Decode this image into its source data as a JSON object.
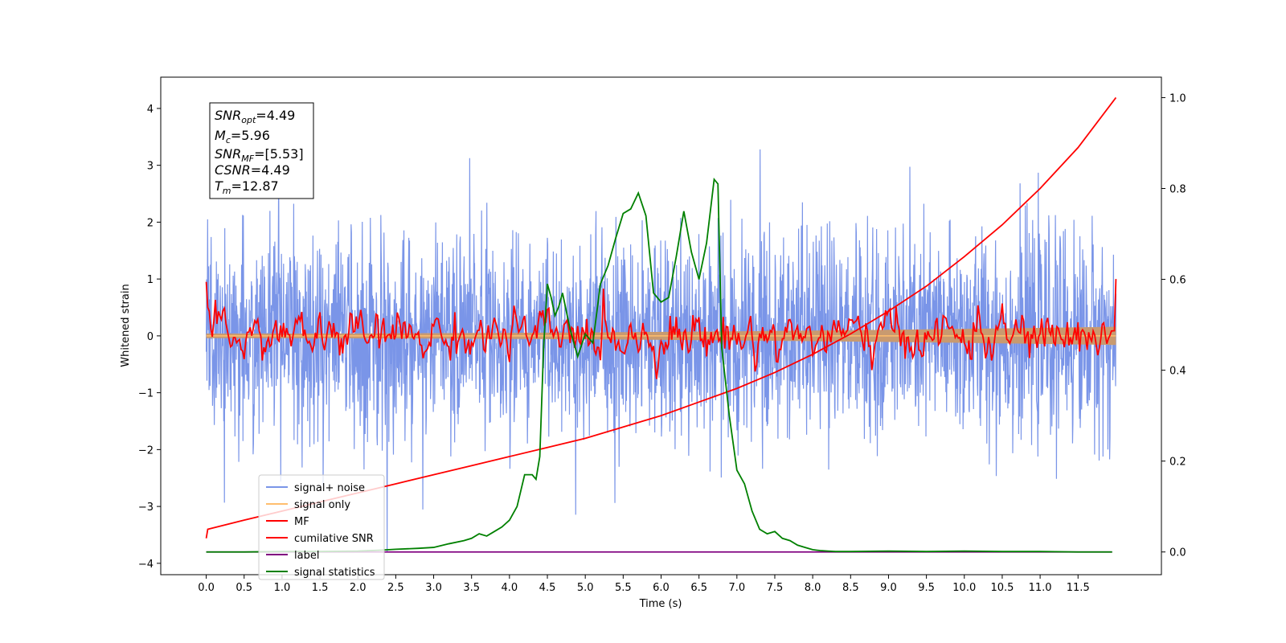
{
  "chart_data": {
    "type": "line",
    "xlabel": "Time (s)",
    "ylabel": "Whitened strain",
    "xlim": [
      -0.6,
      12.6
    ],
    "ylim": [
      -4.2,
      4.55
    ],
    "y2lim": [
      -0.05,
      1.045
    ],
    "xticks": [
      "0.0",
      "0.5",
      "1.0",
      "1.5",
      "2.0",
      "2.5",
      "3.0",
      "3.5",
      "4.0",
      "4.5",
      "5.0",
      "5.5",
      "6.0",
      "6.5",
      "7.0",
      "7.5",
      "8.0",
      "8.5",
      "9.0",
      "9.5",
      "10.0",
      "10.5",
      "11.0",
      "11.5"
    ],
    "yticks": [
      "−4",
      "−3",
      "−2",
      "−1",
      "0",
      "1",
      "2",
      "3",
      "4"
    ],
    "y2ticks": [
      "0.0",
      "0.2",
      "0.4",
      "0.6",
      "0.8",
      "1.0"
    ],
    "grid": false,
    "legend_position": "lower-left",
    "colors": {
      "signal_noise": "#7a95e8",
      "signal_only": "#ffbe6e",
      "mf": "#ff0000",
      "cumulative_snr": "#ff0000",
      "label": "#800080",
      "signal_statistics": "#008000",
      "signal_fill": "#c89a70"
    },
    "info_box": {
      "snr_opt": "SNR",
      "snr_opt_sub": "opt",
      "snr_opt_val": "=4.49",
      "mc": "M",
      "mc_sub": "c",
      "mc_val": "=5.96",
      "snr_mf": "SNR",
      "snr_mf_sub": "MF",
      "snr_mf_val": "=[5.53]",
      "csnr": "CSNR",
      "csnr_val": "=4.49",
      "tm": "T",
      "tm_sub": "m",
      "tm_val": "=12.87"
    },
    "series": [
      {
        "name": "signal+ noise",
        "axis": "left",
        "style": "noise",
        "x_range": [
          0,
          12.0
        ],
        "amplitude_std": 0.9
      },
      {
        "name": "signal only",
        "axis": "left",
        "style": "line",
        "x": [
          0,
          12.0
        ],
        "y": [
          0,
          0
        ]
      },
      {
        "name": "MF",
        "axis": "left",
        "style": "mf",
        "x_range": [
          0,
          12.0
        ],
        "start": 0.95,
        "end": 1.0,
        "std": 0.18
      },
      {
        "name": "cumilative SNR",
        "axis": "right",
        "style": "line",
        "x": [
          0.0,
          0.02,
          0.5,
          1.0,
          1.5,
          2.0,
          2.5,
          3.0,
          3.5,
          4.0,
          4.5,
          5.0,
          5.5,
          6.0,
          6.5,
          7.0,
          7.5,
          8.0,
          8.5,
          9.0,
          9.5,
          10.0,
          10.5,
          11.0,
          11.5,
          12.0
        ],
        "y": [
          0.03,
          0.05,
          0.07,
          0.09,
          0.11,
          0.13,
          0.15,
          0.17,
          0.19,
          0.21,
          0.23,
          0.25,
          0.275,
          0.3,
          0.33,
          0.36,
          0.395,
          0.435,
          0.48,
          0.53,
          0.585,
          0.65,
          0.72,
          0.8,
          0.89,
          1.0
        ]
      },
      {
        "name": "label",
        "axis": "right",
        "style": "line",
        "x": [
          0,
          11.95
        ],
        "y": [
          0.0,
          0.0
        ]
      },
      {
        "name": "signal statistics",
        "axis": "right",
        "style": "line",
        "x": [
          0.0,
          0.5,
          1.0,
          1.5,
          2.0,
          2.3,
          2.5,
          2.8,
          3.0,
          3.2,
          3.4,
          3.5,
          3.6,
          3.7,
          3.8,
          3.9,
          4.0,
          4.1,
          4.2,
          4.3,
          4.35,
          4.4,
          4.45,
          4.5,
          4.55,
          4.6,
          4.65,
          4.7,
          4.8,
          4.9,
          5.0,
          5.1,
          5.2,
          5.3,
          5.4,
          5.5,
          5.6,
          5.7,
          5.8,
          5.9,
          6.0,
          6.1,
          6.2,
          6.3,
          6.4,
          6.5,
          6.6,
          6.7,
          6.75,
          6.8,
          6.9,
          7.0,
          7.1,
          7.2,
          7.3,
          7.4,
          7.5,
          7.6,
          7.7,
          7.8,
          7.9,
          8.0,
          8.1,
          8.2,
          8.3,
          8.5,
          9.0,
          9.5,
          10.0,
          10.5,
          11.0,
          11.5,
          11.95
        ],
        "y": [
          0.0,
          0.0,
          0.001,
          0.001,
          0.002,
          0.004,
          0.006,
          0.008,
          0.01,
          0.018,
          0.025,
          0.03,
          0.04,
          0.035,
          0.045,
          0.055,
          0.07,
          0.1,
          0.17,
          0.17,
          0.16,
          0.21,
          0.45,
          0.59,
          0.56,
          0.52,
          0.54,
          0.57,
          0.49,
          0.43,
          0.48,
          0.46,
          0.59,
          0.63,
          0.69,
          0.745,
          0.755,
          0.79,
          0.74,
          0.57,
          0.55,
          0.56,
          0.65,
          0.75,
          0.66,
          0.6,
          0.68,
          0.82,
          0.81,
          0.45,
          0.3,
          0.18,
          0.15,
          0.09,
          0.05,
          0.04,
          0.045,
          0.03,
          0.025,
          0.015,
          0.01,
          0.005,
          0.003,
          0.002,
          0.001,
          0.001,
          0.002,
          0.001,
          0.002,
          0.001,
          0.001,
          0.0,
          0.0
        ]
      }
    ]
  }
}
